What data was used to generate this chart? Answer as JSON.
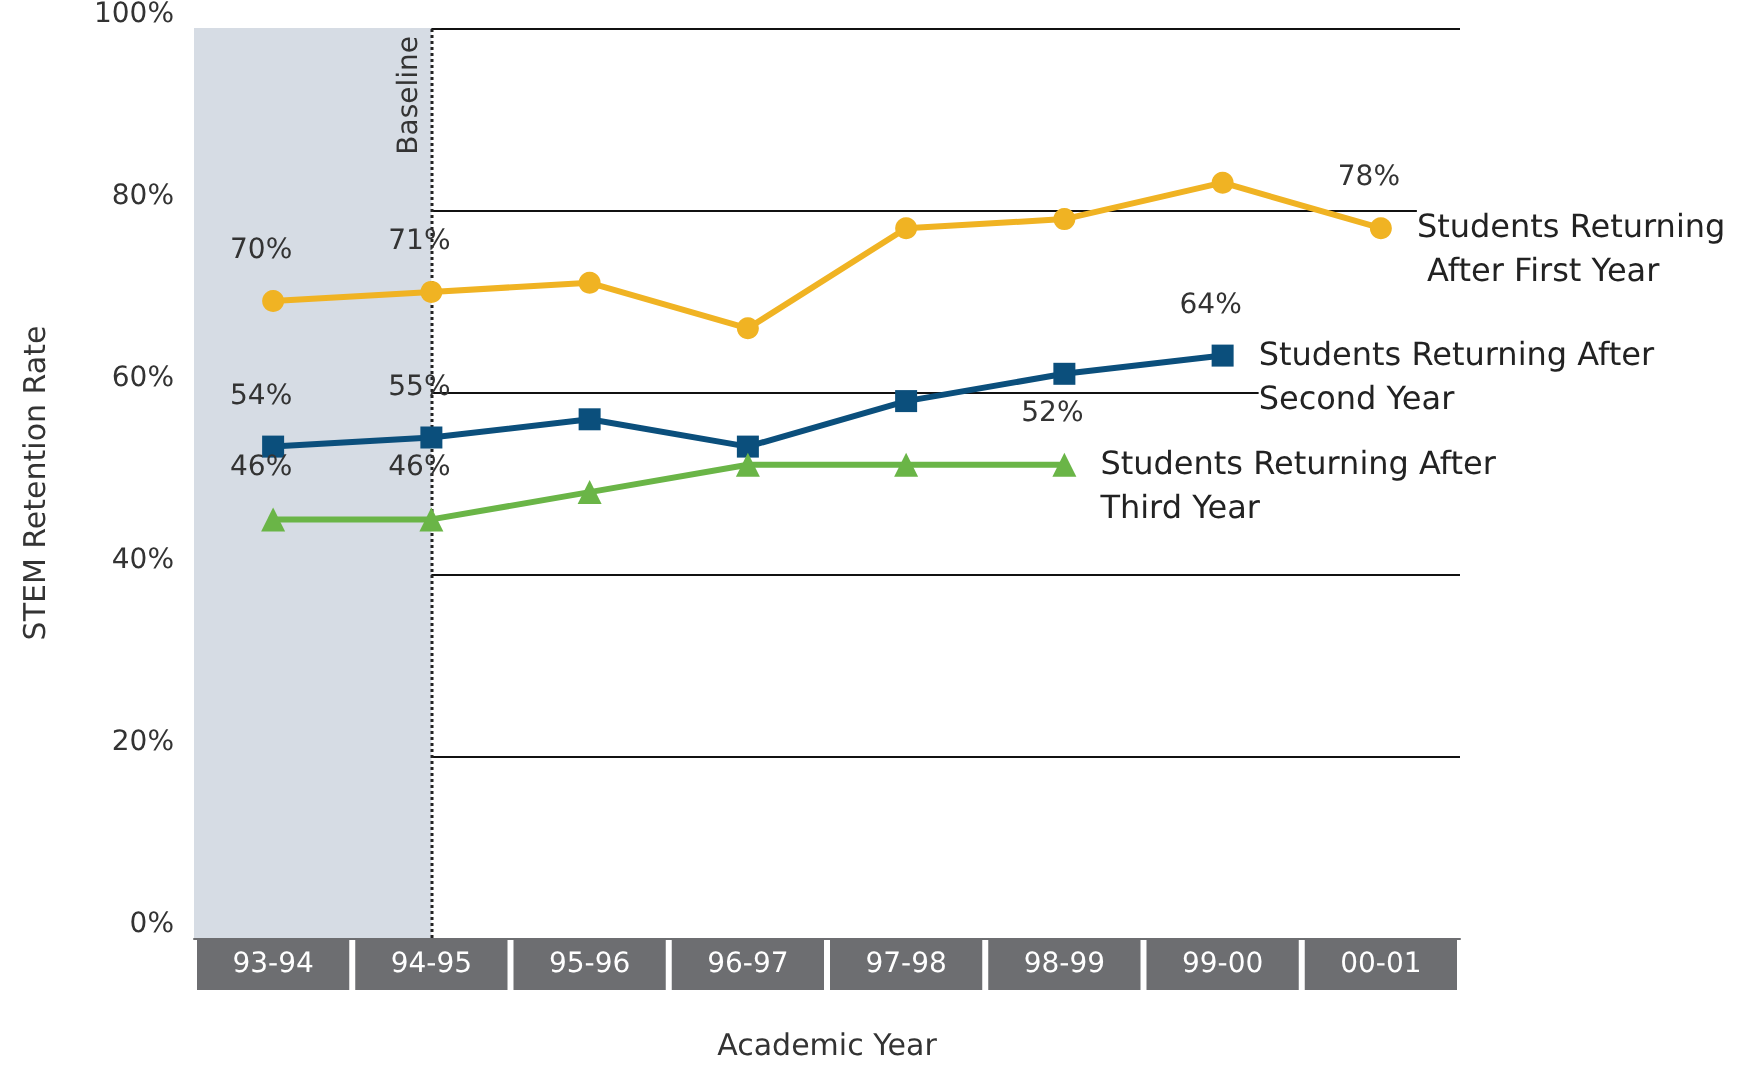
{
  "chart_data": {
    "type": "line",
    "xlabel": "Academic Year",
    "ylabel": "STEM Retention Rate",
    "categories": [
      "93-94",
      "94-95",
      "95-96",
      "96-97",
      "97-98",
      "98-99",
      "99-00",
      "00-01"
    ],
    "series": [
      {
        "name": "Students Returning After First Year",
        "color": "#f0b323",
        "marker": "circle",
        "values": [
          70,
          71,
          72,
          67,
          78,
          79,
          83,
          78
        ],
        "value_labels": [
          "70%",
          "71%",
          null,
          null,
          null,
          null,
          null,
          "78%"
        ]
      },
      {
        "name": "Students Returning After Second Year",
        "color": "#0b4f7c",
        "marker": "square",
        "values": [
          54,
          55,
          57,
          54,
          59,
          62,
          64,
          null
        ],
        "value_labels": [
          "54%",
          "55%",
          null,
          null,
          null,
          null,
          "64%",
          null
        ]
      },
      {
        "name": "Students Returning After Third Year",
        "color": "#6ab547",
        "marker": "triangle",
        "values": [
          46,
          46,
          49,
          52,
          52,
          52,
          null,
          null
        ],
        "value_labels": [
          "46%",
          "46%",
          null,
          null,
          null,
          "52%",
          null,
          null
        ]
      }
    ],
    "ylim": [
      0,
      100
    ],
    "yticks": [
      {
        "value": 0,
        "label": "0%"
      },
      {
        "value": 20,
        "label": "20%"
      },
      {
        "value": 40,
        "label": "40%"
      },
      {
        "value": 60,
        "label": "60%"
      },
      {
        "value": 80,
        "label": "80%"
      },
      {
        "value": 100,
        "label": "100%"
      }
    ],
    "grid": "y",
    "legend": false,
    "ref_lines": [
      {
        "axis": "x",
        "value": "94-95",
        "label": "Baseline",
        "line_style": "dotted",
        "color": "#222222"
      }
    ],
    "bands": [
      {
        "axis": "x",
        "from": "93-94",
        "to": "94-95",
        "color": "#d6dce4"
      }
    ]
  }
}
